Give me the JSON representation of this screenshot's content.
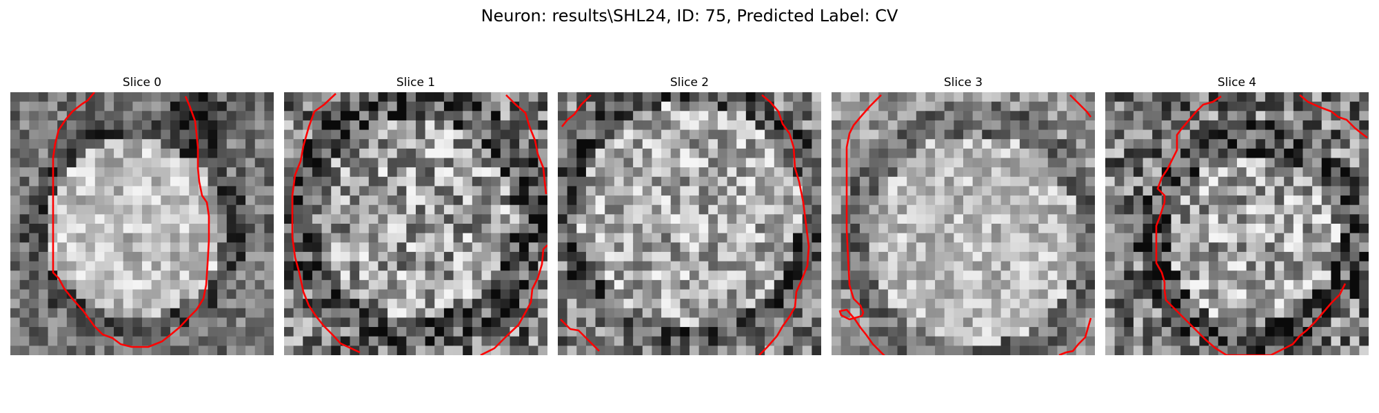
{
  "figure": {
    "title": "Neuron: results\\SHL24, ID: 75, Predicted Label: CV"
  },
  "colors": {
    "contour": "#ff0000",
    "colormap": "gray"
  },
  "slices": [
    {
      "title": "Slice 0"
    },
    {
      "title": "Slice 1"
    },
    {
      "title": "Slice 2"
    },
    {
      "title": "Slice 3"
    },
    {
      "title": "Slice 4"
    }
  ]
}
